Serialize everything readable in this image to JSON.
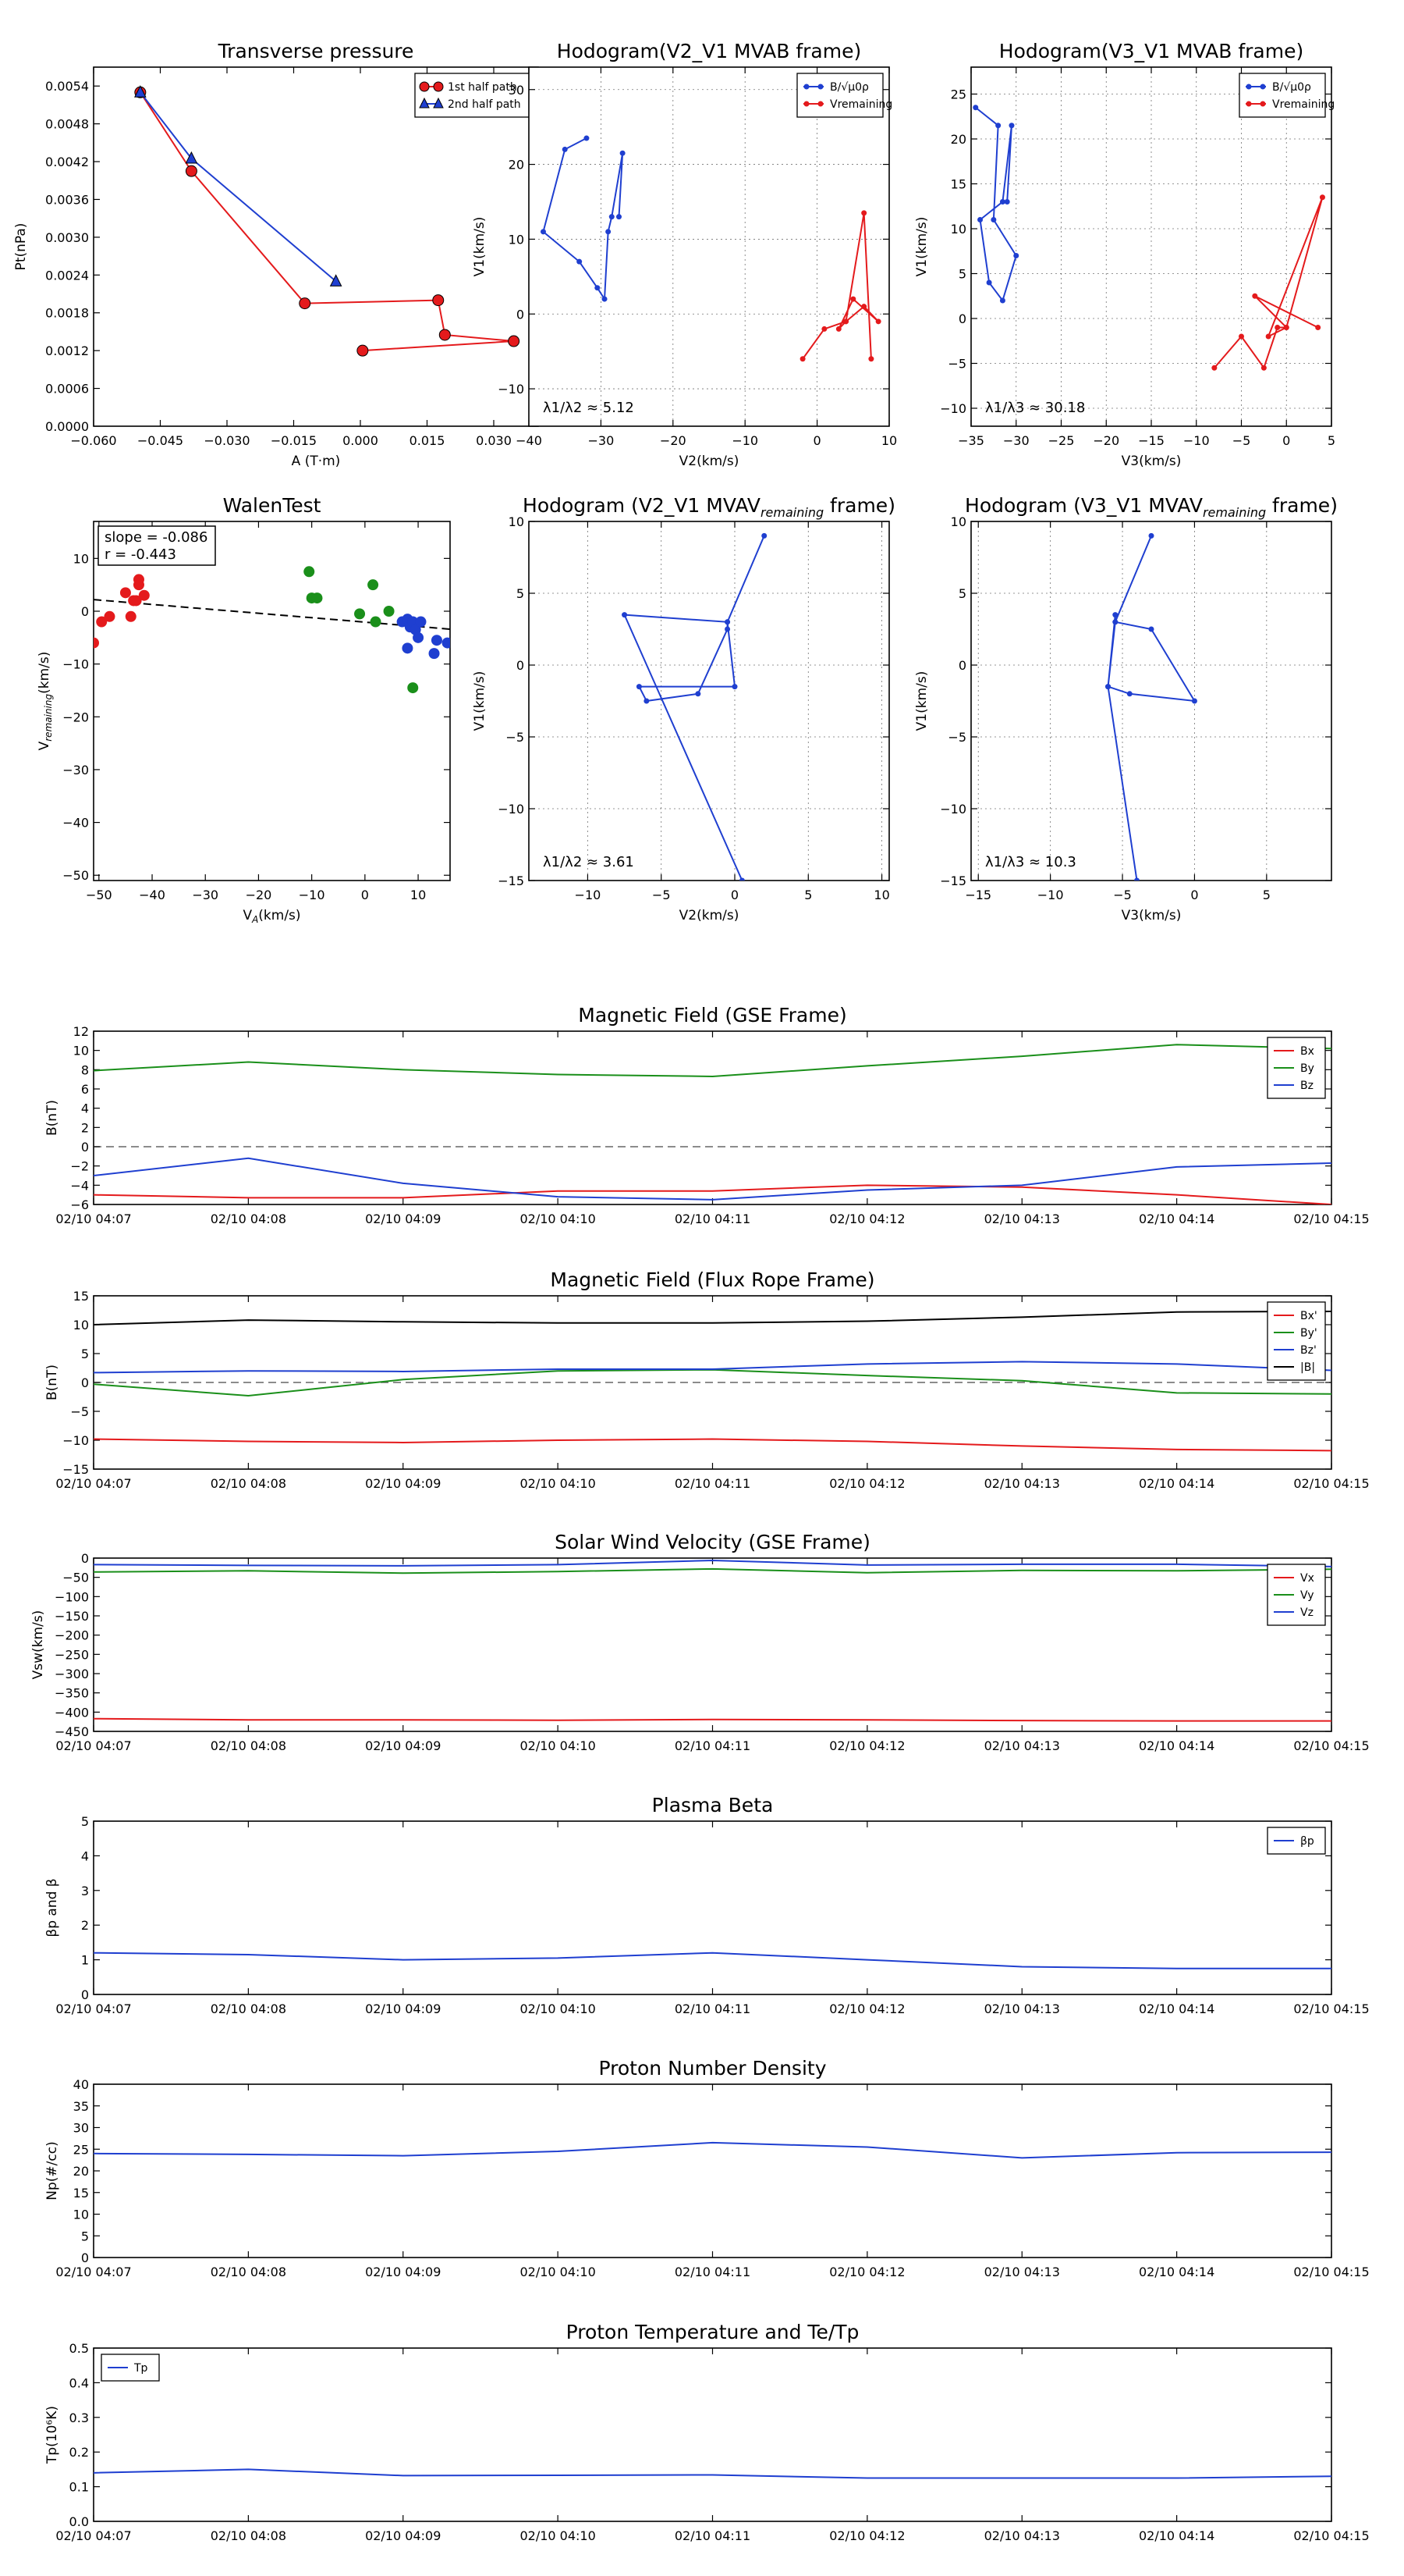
{
  "chart_data": [
    {
      "type": "line",
      "title": "Transverse pressure",
      "xlabel": "A (T·m)",
      "ylabel": "Pt(nPa)",
      "xlim": [
        -0.06,
        0.04
      ],
      "ylim": [
        0,
        0.0057
      ],
      "xticks": [
        -0.06,
        -0.045,
        -0.03,
        -0.015,
        0.0,
        0.015,
        0.03
      ],
      "xtick_labels": [
        "−0.060",
        "−0.045",
        "−0.030",
        "−0.015",
        "0.000",
        "0.015",
        "0.030"
      ],
      "yticks": [
        0,
        0.0006,
        0.0012,
        0.0018,
        0.0024,
        0.003,
        0.0036,
        0.0042,
        0.0048,
        0.0054
      ],
      "ytick_labels": [
        "0.0000",
        "0.0006",
        "0.0012",
        "0.0018",
        "0.0024",
        "0.0030",
        "0.0036",
        "0.0042",
        "0.0048",
        "0.0054"
      ],
      "grid": false,
      "legend": "top-right",
      "series": [
        {
          "name": "1st half path",
          "color": "#e41a1c",
          "marker": "circle",
          "x": [
            -0.0495,
            -0.038,
            -0.0125,
            0.0175,
            0.019,
            0.0345,
            0.0005
          ],
          "y": [
            0.0053,
            0.00405,
            0.00195,
            0.002,
            0.00145,
            0.00135,
            0.0012
          ]
        },
        {
          "name": "2nd half path",
          "color": "#1f3fd0",
          "marker": "triangle",
          "x": [
            -0.0495,
            -0.038,
            -0.0055
          ],
          "y": [
            0.0053,
            0.00425,
            0.0023
          ]
        }
      ]
    },
    {
      "type": "line",
      "title": "Hodogram(V2_V1 MVAB frame)",
      "xlabel": "V2(km/s)",
      "ylabel": "V1(km/s)",
      "xlim": [
        -40,
        10
      ],
      "ylim": [
        -15,
        33
      ],
      "xticks": [
        -40,
        -30,
        -20,
        -10,
        0,
        10
      ],
      "xtick_labels": [
        "−40",
        "−30",
        "−20",
        "−10",
        "0",
        "10"
      ],
      "yticks": [
        -10,
        0,
        10,
        20,
        30
      ],
      "ytick_labels": [
        "−10",
        "0",
        "10",
        "20",
        "30"
      ],
      "grid": true,
      "legend": "top-right",
      "annotation": "λ1/λ2 ≈ 5.12",
      "series": [
        {
          "name": "B/√μ0ρ",
          "color": "#1f3fd0",
          "x": [
            -32,
            -35,
            -38,
            -33,
            -30.5,
            -29.5,
            -29,
            -28.5,
            -27,
            -27.5
          ],
          "y": [
            23.5,
            22,
            11,
            7,
            3.5,
            2,
            11,
            13,
            21.5,
            13
          ]
        },
        {
          "name": "Vremaining",
          "color": "#e41a1c",
          "x": [
            -2,
            1,
            4,
            6.5,
            8.5,
            5,
            3,
            4,
            6.5,
            7.5
          ],
          "y": [
            -6,
            -2,
            -1,
            1,
            -1,
            2,
            -2,
            -1,
            13.5,
            -6
          ]
        }
      ]
    },
    {
      "type": "line",
      "title": "Hodogram(V3_V1 MVAB frame)",
      "xlabel": "V3(km/s)",
      "ylabel": "V1(km/s)",
      "xlim": [
        -35,
        5
      ],
      "ylim": [
        -12,
        28
      ],
      "xticks": [
        -35,
        -30,
        -25,
        -20,
        -15,
        -10,
        -5,
        0,
        5
      ],
      "xtick_labels": [
        "−35",
        "−30",
        "−25",
        "−20",
        "−15",
        "−10",
        "−5",
        "0",
        "5"
      ],
      "yticks": [
        -10,
        -5,
        0,
        5,
        10,
        15,
        20,
        25
      ],
      "ytick_labels": [
        "−10",
        "−5",
        "0",
        "5",
        "10",
        "15",
        "20",
        "25"
      ],
      "grid": true,
      "legend": "top-right",
      "annotation": "λ1/λ3 ≈ 30.18",
      "series": [
        {
          "name": "B/√μ0ρ",
          "color": "#1f3fd0",
          "x": [
            -34.5,
            -32,
            -32.5,
            -30,
            -31.5,
            -33,
            -34,
            -31.5,
            -30.5,
            -31
          ],
          "y": [
            23.5,
            21.5,
            11,
            7,
            2,
            4,
            11,
            13,
            21.5,
            13
          ]
        },
        {
          "name": "Vremaining",
          "color": "#e41a1c",
          "x": [
            -8,
            -5,
            -2.5,
            -1,
            0,
            -2,
            4,
            0,
            -3.5,
            3.5
          ],
          "y": [
            -5.5,
            -2,
            -5.5,
            -1,
            -1,
            -2,
            13.5,
            -1,
            2.5,
            -1
          ]
        }
      ]
    },
    {
      "type": "scatter",
      "title": "WalenTest",
      "xlabel": "V_A(km/s)",
      "ylabel": "V_remaining(km/s)",
      "xlim": [
        -51,
        16
      ],
      "ylim": [
        -51,
        17
      ],
      "xticks": [
        -50,
        -40,
        -30,
        -20,
        -10,
        0,
        10
      ],
      "xtick_labels": [
        "−50",
        "−40",
        "−30",
        "−20",
        "−10",
        "0",
        "10"
      ],
      "yticks": [
        -50,
        -40,
        -30,
        -20,
        -10,
        0,
        10
      ],
      "ytick_labels": [
        "−50",
        "−40",
        "−30",
        "−20",
        "−10",
        "0",
        "10"
      ],
      "grid": false,
      "annotation_lines": [
        "slope = -0.086",
        "r = -0.443"
      ],
      "fit_line": {
        "x": [
          -51,
          16
        ],
        "y": [
          2.2,
          -3.4
        ]
      },
      "series": [
        {
          "color": "#e41a1c",
          "x": [
            -51,
            -49.5,
            -48,
            -45,
            -44,
            -43,
            -42.5,
            -42.5,
            -41.5,
            -43.5
          ],
          "y": [
            -6,
            -2,
            -1,
            3.5,
            -1,
            2,
            5,
            6,
            3,
            2
          ]
        },
        {
          "color": "#1a8f1a",
          "x": [
            -10.5,
            -10,
            -9,
            -1,
            1.5,
            2,
            4.5,
            9
          ],
          "y": [
            7.5,
            2.5,
            2.5,
            -0.5,
            5,
            -2,
            0,
            -14.5
          ]
        },
        {
          "color": "#1f3fd0",
          "x": [
            7,
            8,
            8,
            8.5,
            9,
            9.5,
            10,
            10.5,
            13,
            13.5,
            15.5
          ],
          "y": [
            -2,
            -7,
            -1.5,
            -3,
            -2,
            -3.5,
            -5,
            -2,
            -8,
            -5.5,
            -6
          ]
        }
      ]
    },
    {
      "type": "line",
      "title": "Hodogram (V2_V1 MVAV",
      "title_sub": "remaining",
      "title_end": " frame)",
      "xlabel": "V2(km/s)",
      "ylabel": "V1(km/s)",
      "xlim": [
        -14,
        10.5
      ],
      "ylim": [
        -15,
        10
      ],
      "xticks": [
        -10,
        -5,
        0,
        5,
        10
      ],
      "xtick_labels": [
        "−10",
        "−5",
        "0",
        "5",
        "10"
      ],
      "yticks": [
        -15,
        -10,
        -5,
        0,
        5,
        10
      ],
      "ytick_labels": [
        "−15",
        "−10",
        "−5",
        "0",
        "5",
        "10"
      ],
      "grid": true,
      "annotation": "λ1/λ2 ≈ 3.61",
      "series": [
        {
          "color": "#1f3fd0",
          "x": [
            2,
            -0.5,
            -0.5,
            -2.5,
            -6,
            -6.5,
            0,
            -0.5,
            -7.5,
            0.5
          ],
          "y": [
            9,
            3,
            2.5,
            -2,
            -2.5,
            -1.5,
            -1.5,
            3,
            3.5,
            -15
          ]
        }
      ]
    },
    {
      "type": "line",
      "title": "Hodogram (V3_V1 MVAV",
      "title_sub": "remaining",
      "title_end": " frame)",
      "xlabel": "V3(km/s)",
      "ylabel": "V1(km/s)",
      "xlim": [
        -15.5,
        9.5
      ],
      "ylim": [
        -15,
        10
      ],
      "xticks": [
        -15,
        -10,
        -5,
        0,
        5
      ],
      "xtick_labels": [
        "−15",
        "−10",
        "−5",
        "0",
        "5"
      ],
      "yticks": [
        -15,
        -10,
        -5,
        0,
        5,
        10
      ],
      "ytick_labels": [
        "−15",
        "−10",
        "−5",
        "0",
        "5",
        "10"
      ],
      "grid": true,
      "annotation": "λ1/λ3 ≈ 10.3",
      "series": [
        {
          "color": "#1f3fd0",
          "x": [
            -3,
            -5.5,
            -5.5,
            -6,
            -4.5,
            0,
            -3,
            -5.5,
            -6,
            -4
          ],
          "y": [
            9,
            3,
            3.5,
            -1.5,
            -2,
            -2.5,
            2.5,
            3,
            -1.5,
            -15
          ]
        }
      ]
    },
    {
      "type": "line",
      "title": "Magnetic Field (GSE Frame)",
      "ylabel": "B(nT)",
      "ylim": [
        -6,
        12
      ],
      "yticks": [
        -6,
        -4,
        -2,
        0,
        2,
        4,
        6,
        8,
        10,
        12
      ],
      "ytick_labels": [
        "−6",
        "−4",
        "−2",
        "0",
        "2",
        "4",
        "6",
        "8",
        "10",
        "12"
      ],
      "zero_line": true,
      "legend": "top-right",
      "series": [
        {
          "name": "Bx",
          "color": "#e41a1c",
          "values": [
            -5,
            -5.3,
            -5.3,
            -4.6,
            -4.6,
            -4,
            -4.2,
            -5,
            -6
          ]
        },
        {
          "name": "By",
          "color": "#1a8f1a",
          "values": [
            7.9,
            8.8,
            8,
            7.5,
            7.3,
            8.4,
            9.4,
            10.6,
            10.2
          ]
        },
        {
          "name": "Bz",
          "color": "#1f3fd0",
          "values": [
            -3,
            -1.2,
            -3.8,
            -5.2,
            -5.5,
            -4.5,
            -4,
            -2.1,
            -1.7
          ]
        }
      ]
    },
    {
      "type": "line",
      "title": "Magnetic Field (Flux Rope Frame)",
      "ylabel": "B(nT)",
      "ylim": [
        -15,
        15
      ],
      "yticks": [
        -15,
        -10,
        -5,
        0,
        5,
        10,
        15
      ],
      "ytick_labels": [
        "−15",
        "−10",
        "−5",
        "0",
        "5",
        "10",
        "15"
      ],
      "zero_line": true,
      "legend": "top-right",
      "series": [
        {
          "name": "Bx'",
          "color": "#e41a1c",
          "values": [
            -9.8,
            -10.2,
            -10.4,
            -10,
            -9.8,
            -10.2,
            -11,
            -11.6,
            -11.8
          ]
        },
        {
          "name": "By'",
          "color": "#1a8f1a",
          "values": [
            -0.3,
            -2.3,
            0.5,
            2,
            2.2,
            1.2,
            0.3,
            -1.8,
            -2
          ]
        },
        {
          "name": "Bz'",
          "color": "#1f3fd0",
          "values": [
            1.7,
            2,
            1.9,
            2.3,
            2.3,
            3.2,
            3.6,
            3.2,
            2.1
          ]
        },
        {
          "name": "|B|",
          "color": "#000000",
          "values": [
            10,
            10.8,
            10.5,
            10.3,
            10.3,
            10.6,
            11.3,
            12.2,
            12.3
          ]
        }
      ]
    },
    {
      "type": "line",
      "title": "Solar Wind Velocity (GSE Frame)",
      "ylabel": "Vsw(km/s)",
      "ylim": [
        -450,
        0
      ],
      "yticks": [
        -450,
        -400,
        -350,
        -300,
        -250,
        -200,
        -150,
        -100,
        -50,
        0
      ],
      "ytick_labels": [
        "−450",
        "−400",
        "−350",
        "−300",
        "−250",
        "−200",
        "−150",
        "−100",
        "−50",
        "0"
      ],
      "legend": "top-right",
      "series": [
        {
          "name": "Vx",
          "color": "#e41a1c",
          "values": [
            -417,
            -420,
            -420,
            -421,
            -419,
            -420,
            -422,
            -423,
            -423
          ]
        },
        {
          "name": "Vy",
          "color": "#1a8f1a",
          "values": [
            -36,
            -33,
            -39,
            -35,
            -28,
            -38,
            -32,
            -33,
            -29
          ]
        },
        {
          "name": "Vz",
          "color": "#1f3fd0",
          "values": [
            -17,
            -19,
            -20,
            -17,
            -6,
            -18,
            -16,
            -16,
            -22
          ]
        }
      ]
    },
    {
      "type": "line",
      "title": "Plasma Beta",
      "ylabel": "βp and β",
      "ylim": [
        0,
        5
      ],
      "yticks": [
        0,
        1,
        2,
        3,
        4,
        5
      ],
      "ytick_labels": [
        "0",
        "1",
        "2",
        "3",
        "4",
        "5"
      ],
      "legend": "top-right",
      "series": [
        {
          "name": "βp",
          "color": "#1f3fd0",
          "values": [
            1.2,
            1.15,
            1.0,
            1.05,
            1.2,
            1.0,
            0.8,
            0.75,
            0.75
          ]
        }
      ]
    },
    {
      "type": "line",
      "title": "Proton Number Density",
      "ylabel": "Np(#/cc)",
      "ylim": [
        0,
        40
      ],
      "yticks": [
        0,
        5,
        10,
        15,
        20,
        25,
        30,
        35,
        40
      ],
      "ytick_labels": [
        "0",
        "5",
        "10",
        "15",
        "20",
        "25",
        "30",
        "35",
        "40"
      ],
      "series": [
        {
          "color": "#1f3fd0",
          "values": [
            24,
            23.8,
            23.5,
            24.5,
            26.5,
            25.5,
            23,
            24.2,
            24.3
          ]
        }
      ]
    },
    {
      "type": "line",
      "title": "Proton Temperature and Te/Tp",
      "ylabel": "Tp(10⁶K)",
      "ylim": [
        0,
        0.5
      ],
      "yticks": [
        0,
        0.1,
        0.2,
        0.3,
        0.4,
        0.5
      ],
      "ytick_labels": [
        "0.0",
        "0.1",
        "0.2",
        "0.3",
        "0.4",
        "0.5"
      ],
      "legend": "top-left",
      "series": [
        {
          "name": "Tp",
          "color": "#1f3fd0",
          "values": [
            0.14,
            0.15,
            0.132,
            0.133,
            0.134,
            0.125,
            0.125,
            0.125,
            0.13
          ]
        }
      ]
    }
  ],
  "time_axis": {
    "labels": [
      "02/10 04:07",
      "02/10 04:08",
      "02/10 04:09",
      "02/10 04:10",
      "02/10 04:11",
      "02/10 04:12",
      "02/10 04:13",
      "02/10 04:14",
      "02/10 04:15"
    ]
  }
}
